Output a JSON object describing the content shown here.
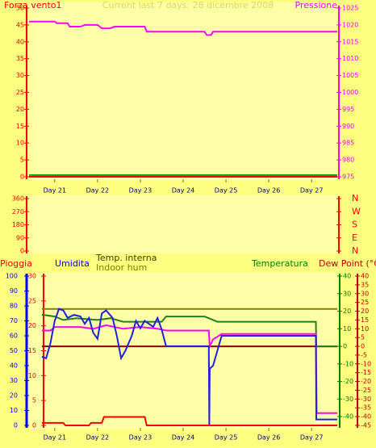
{
  "chart_data": [
    {
      "type": "line",
      "title": "Current last 7 days: 28 dicembre 2008",
      "y_label": "Forza vento1",
      "y2_label": "Pressione",
      "xlim": [
        20.4,
        27.6
      ],
      "xticks": [
        {
          "value": 21,
          "label": "Day 21"
        },
        {
          "value": 22,
          "label": "Day 22"
        },
        {
          "value": 23,
          "label": "Day 23"
        },
        {
          "value": 24,
          "label": "Day 24"
        },
        {
          "value": 25,
          "label": "Day 25"
        },
        {
          "value": 26,
          "label": "Day 26"
        },
        {
          "value": 27,
          "label": "Day 27"
        }
      ],
      "ylim": [
        0,
        50
      ],
      "yticks": [
        0,
        5,
        10,
        15,
        20,
        25,
        30,
        35,
        40,
        45,
        50
      ],
      "ycolor": "#ff0000",
      "y2lim": [
        975,
        1025
      ],
      "y2ticks": [
        975,
        980,
        985,
        990,
        995,
        1000,
        1005,
        1010,
        1015,
        1020,
        1025
      ],
      "y2color": "#ff00ff",
      "series": [
        {
          "color": "#ff0000",
          "x": [
            20.4,
            27.6
          ],
          "values": [
            0,
            0
          ]
        },
        {
          "color": "#00a000",
          "x": [
            20.4,
            27.6
          ],
          "values": [
            0.5,
            0.5
          ]
        },
        {
          "color": "#ff00ff",
          "axis": "y2",
          "x": [
            20.4,
            21.0,
            21.05,
            21.3,
            21.35,
            21.6,
            21.7,
            22.0,
            22.1,
            22.3,
            22.4,
            22.55,
            22.6,
            23.1,
            23.15,
            23.3,
            23.35,
            24.5,
            24.55,
            24.65,
            24.7,
            27.6
          ],
          "values": [
            1021,
            1021,
            1020.5,
            1020.5,
            1019.5,
            1019.5,
            1020,
            1020,
            1019,
            1019,
            1019.5,
            1019.5,
            1019.5,
            1019.5,
            1018,
            1018,
            1018,
            1018,
            1017,
            1017,
            1018,
            1018
          ]
        }
      ]
    },
    {
      "type": "line",
      "ylim": [
        0,
        360
      ],
      "yticks": [
        0,
        90,
        180,
        270,
        360
      ],
      "ycolor": "#ff0000",
      "y2lim": [
        0,
        360
      ],
      "y2ticks": [
        {
          "value": 0,
          "label": "N"
        },
        {
          "value": 90,
          "label": "E"
        },
        {
          "value": 180,
          "label": "S"
        },
        {
          "value": 270,
          "label": "W"
        },
        {
          "value": 360,
          "label": "N"
        }
      ],
      "y2color": "#ff0000",
      "series": []
    },
    {
      "type": "line",
      "xlim": [
        20.4,
        27.6
      ],
      "xticks": [
        {
          "value": 21,
          "label": "Day 21"
        },
        {
          "value": 22,
          "label": "Day 22"
        },
        {
          "value": 23,
          "label": "Day 23"
        },
        {
          "value": 24,
          "label": "Day 24"
        },
        {
          "value": 25,
          "label": "Day 25"
        },
        {
          "value": 26,
          "label": "Day 26"
        },
        {
          "value": 27,
          "label": "Day 27"
        }
      ],
      "axes": [
        {
          "label": "Umidita",
          "lim": [
            0,
            100
          ],
          "ticks": [
            0,
            10,
            20,
            30,
            40,
            50,
            60,
            70,
            80,
            90,
            100
          ],
          "color": "#0000ff"
        },
        {
          "label": "Pioggia",
          "lim": [
            0,
            30
          ],
          "ticks": [
            0,
            5,
            10,
            15,
            20,
            25,
            30
          ],
          "color": "#ff0000"
        },
        {
          "label": "Temperatura",
          "lim": [
            -45,
            40
          ],
          "ticks": [
            -40,
            -30,
            -20,
            -10,
            0,
            10,
            20,
            30,
            40
          ],
          "color": "#008000"
        },
        {
          "label": "Dew Point (°C)",
          "lim": [
            -45,
            40
          ],
          "ticks": [
            -45,
            -40,
            -35,
            -30,
            -25,
            -20,
            -15,
            -10,
            -5,
            0,
            5,
            10,
            15,
            20,
            25,
            30,
            35,
            40
          ],
          "color": "#c00000"
        }
      ],
      "series": [
        {
          "color": "#8b0000",
          "axis": 3,
          "x": [
            20.7,
            27.6
          ],
          "values": [
            0,
            0
          ]
        },
        {
          "name": "Indoor hum",
          "color": "#808000",
          "axis": 0,
          "x": [
            20.7,
            27.6
          ],
          "values": [
            78,
            78
          ]
        },
        {
          "color": "#208020",
          "axis": 2,
          "x": [
            20.7,
            21.0,
            21.2,
            21.5,
            22.0,
            22.3,
            22.6,
            23.0,
            23.5,
            23.6,
            24.5,
            24.6,
            24.8,
            27.1,
            27.11,
            27.6
          ],
          "values": [
            18,
            17,
            15,
            16,
            15,
            16,
            14,
            14,
            14,
            17,
            17,
            16,
            14,
            14,
            0,
            0
          ]
        },
        {
          "name": "Temp. interna",
          "color": "#ff00ff",
          "axis": 2,
          "x": [
            20.7,
            20.9,
            21.0,
            21.3,
            21.6,
            21.9,
            22.2,
            22.6,
            23.0,
            23.4,
            23.6,
            24.6,
            24.62,
            24.7,
            24.9,
            27.1,
            27.12,
            27.6
          ],
          "values": [
            9,
            9,
            11,
            11,
            11,
            10,
            12,
            10,
            11,
            10,
            9,
            9,
            0,
            4,
            7,
            7,
            -38,
            -38
          ]
        },
        {
          "color": "#2020e0",
          "axis": 0,
          "x": [
            20.7,
            20.8,
            20.9,
            21.0,
            21.1,
            21.2,
            21.3,
            21.45,
            21.6,
            21.7,
            21.8,
            21.9,
            22.0,
            22.1,
            22.2,
            22.35,
            22.45,
            22.55,
            22.65,
            22.8,
            22.9,
            23.0,
            23.1,
            23.2,
            23.3,
            23.4,
            23.5,
            23.6,
            24.6,
            24.61,
            24.62,
            24.7,
            24.8,
            24.9,
            25.0,
            27.1,
            27.11,
            27.6
          ],
          "values": [
            46,
            45,
            55,
            70,
            78,
            77,
            72,
            74,
            73,
            68,
            72,
            62,
            58,
            75,
            77,
            72,
            60,
            45,
            50,
            60,
            70,
            65,
            70,
            68,
            66,
            72,
            64,
            53,
            53,
            0,
            38,
            40,
            50,
            60,
            60,
            60,
            4,
            4
          ]
        },
        {
          "color": "#ff0000",
          "axis": 1,
          "x": [
            20.7,
            21.2,
            21.25,
            21.8,
            21.85,
            22.1,
            22.15,
            23.1,
            23.15,
            27.6
          ],
          "values": [
            0.5,
            0.5,
            0,
            0,
            0.5,
            0.5,
            1.7,
            1.7,
            0,
            0
          ]
        }
      ]
    }
  ]
}
